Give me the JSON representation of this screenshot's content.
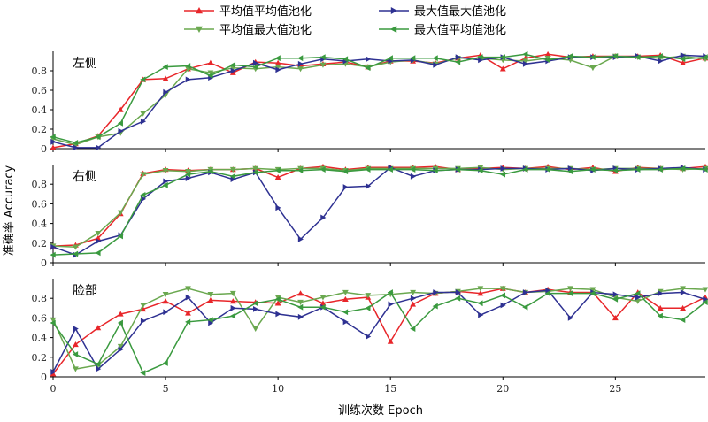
{
  "chart_data": [
    {
      "type": "line",
      "panel_label": "左侧",
      "x": [
        0,
        1,
        2,
        3,
        4,
        5,
        6,
        7,
        8,
        9,
        10,
        11,
        12,
        13,
        14,
        15,
        16,
        17,
        18,
        19,
        20,
        21,
        22,
        23,
        24,
        25,
        26,
        27,
        28,
        29
      ],
      "ylim": [
        0,
        1.0
      ],
      "yticks": [
        0,
        0.2,
        0.4,
        0.6,
        0.8
      ],
      "series": [
        {
          "name": "平均值平均值池化",
          "color": "#e8262a",
          "marker": "triangle-up",
          "values": [
            0.01,
            0.05,
            0.13,
            0.4,
            0.71,
            0.72,
            0.82,
            0.88,
            0.78,
            0.89,
            0.88,
            0.85,
            0.87,
            0.89,
            0.84,
            0.9,
            0.9,
            0.88,
            0.93,
            0.96,
            0.82,
            0.93,
            0.97,
            0.94,
            0.95,
            0.95,
            0.95,
            0.96,
            0.88,
            0.93
          ]
        },
        {
          "name": "平均值最大值池化",
          "color": "#6aa84f",
          "marker": "triangle-down",
          "values": [
            0.1,
            0.04,
            0.12,
            0.16,
            0.36,
            0.55,
            0.82,
            0.78,
            0.83,
            0.82,
            0.84,
            0.82,
            0.86,
            0.87,
            0.84,
            0.89,
            0.91,
            0.87,
            0.93,
            0.93,
            0.91,
            0.9,
            0.93,
            0.91,
            0.83,
            0.95,
            0.94,
            0.93,
            0.95,
            0.92
          ]
        },
        {
          "name": "最大值最大值池化",
          "color": "#2e3192",
          "marker": "triangle-right",
          "values": [
            0.07,
            0.01,
            0.01,
            0.18,
            0.28,
            0.58,
            0.71,
            0.73,
            0.8,
            0.88,
            0.81,
            0.87,
            0.92,
            0.9,
            0.92,
            0.9,
            0.91,
            0.86,
            0.94,
            0.91,
            0.94,
            0.87,
            0.9,
            0.94,
            0.94,
            0.94,
            0.95,
            0.9,
            0.96,
            0.95
          ]
        },
        {
          "name": "最大值平均值池化",
          "color": "#3a9a3f",
          "marker": "triangle-left",
          "values": [
            0.12,
            0.06,
            0.12,
            0.26,
            0.71,
            0.84,
            0.85,
            0.75,
            0.86,
            0.84,
            0.93,
            0.93,
            0.94,
            0.92,
            0.83,
            0.93,
            0.93,
            0.93,
            0.89,
            0.94,
            0.94,
            0.97,
            0.91,
            0.95,
            0.94,
            0.95,
            0.94,
            0.95,
            0.92,
            0.94
          ]
        }
      ]
    },
    {
      "type": "line",
      "panel_label": "右侧",
      "x": [
        0,
        1,
        2,
        3,
        4,
        5,
        6,
        7,
        8,
        9,
        10,
        11,
        12,
        13,
        14,
        15,
        16,
        17,
        18,
        19,
        20,
        21,
        22,
        23,
        24,
        25,
        26,
        27,
        28,
        29
      ],
      "ylim": [
        0,
        1.0
      ],
      "yticks": [
        0,
        0.2,
        0.4,
        0.6,
        0.8
      ],
      "series": [
        {
          "name": "平均值平均值池化",
          "color": "#e8262a",
          "marker": "triangle-up",
          "values": [
            0.17,
            0.18,
            0.25,
            0.5,
            0.91,
            0.95,
            0.94,
            0.95,
            0.95,
            0.96,
            0.87,
            0.96,
            0.98,
            0.95,
            0.97,
            0.97,
            0.97,
            0.98,
            0.95,
            0.96,
            0.97,
            0.96,
            0.98,
            0.95,
            0.97,
            0.93,
            0.97,
            0.96,
            0.96,
            0.98
          ]
        },
        {
          "name": "平均值最大值池化",
          "color": "#6aa84f",
          "marker": "triangle-down",
          "values": [
            0.17,
            0.16,
            0.3,
            0.51,
            0.9,
            0.94,
            0.93,
            0.95,
            0.95,
            0.96,
            0.95,
            0.96,
            0.96,
            0.94,
            0.96,
            0.96,
            0.96,
            0.96,
            0.96,
            0.97,
            0.95,
            0.96,
            0.96,
            0.96,
            0.95,
            0.96,
            0.96,
            0.96,
            0.95,
            0.96
          ]
        },
        {
          "name": "最大值最大值池化",
          "color": "#2e3192",
          "marker": "triangle-right",
          "values": [
            0.16,
            0.08,
            0.22,
            0.28,
            0.65,
            0.83,
            0.86,
            0.92,
            0.85,
            0.92,
            0.56,
            0.24,
            0.46,
            0.77,
            0.78,
            0.97,
            0.88,
            0.94,
            0.95,
            0.95,
            0.96,
            0.96,
            0.95,
            0.96,
            0.94,
            0.96,
            0.95,
            0.96,
            0.97,
            0.95
          ]
        },
        {
          "name": "最大值平均值池化",
          "color": "#3a9a3f",
          "marker": "triangle-left",
          "values": [
            0.08,
            0.09,
            0.1,
            0.27,
            0.69,
            0.79,
            0.9,
            0.93,
            0.88,
            0.92,
            0.94,
            0.94,
            0.95,
            0.93,
            0.95,
            0.95,
            0.95,
            0.94,
            0.95,
            0.94,
            0.9,
            0.95,
            0.95,
            0.93,
            0.95,
            0.94,
            0.95,
            0.95,
            0.96,
            0.95
          ]
        }
      ]
    },
    {
      "type": "line",
      "panel_label": "脸部",
      "x": [
        0,
        1,
        2,
        3,
        4,
        5,
        6,
        7,
        8,
        9,
        10,
        11,
        12,
        13,
        14,
        15,
        16,
        17,
        18,
        19,
        20,
        21,
        22,
        23,
        24,
        25,
        26,
        27,
        28,
        29
      ],
      "ylim": [
        0,
        1.0
      ],
      "yticks": [
        0,
        0.2,
        0.4,
        0.6,
        0.8
      ],
      "series": [
        {
          "name": "平均值平均值池化",
          "color": "#e8262a",
          "marker": "triangle-up",
          "values": [
            0.03,
            0.33,
            0.5,
            0.64,
            0.69,
            0.77,
            0.65,
            0.78,
            0.77,
            0.76,
            0.75,
            0.85,
            0.75,
            0.79,
            0.81,
            0.36,
            0.74,
            0.85,
            0.87,
            0.85,
            0.9,
            0.86,
            0.89,
            0.86,
            0.86,
            0.6,
            0.86,
            0.7,
            0.7,
            0.81
          ]
        },
        {
          "name": "平均值最大值池化",
          "color": "#6aa84f",
          "marker": "triangle-down",
          "values": [
            0.58,
            0.08,
            0.12,
            0.31,
            0.73,
            0.84,
            0.9,
            0.84,
            0.85,
            0.49,
            0.81,
            0.76,
            0.81,
            0.86,
            0.83,
            0.84,
            0.86,
            0.85,
            0.87,
            0.9,
            0.9,
            0.86,
            0.87,
            0.9,
            0.89,
            0.81,
            0.77,
            0.87,
            0.9,
            0.89
          ]
        },
        {
          "name": "最大值最大值池化",
          "color": "#2e3192",
          "marker": "triangle-right",
          "values": [
            0.05,
            0.49,
            0.08,
            0.28,
            0.57,
            0.66,
            0.81,
            0.55,
            0.7,
            0.69,
            0.64,
            0.61,
            0.71,
            0.56,
            0.41,
            0.74,
            0.8,
            0.86,
            0.86,
            0.63,
            0.73,
            0.86,
            0.88,
            0.6,
            0.86,
            0.84,
            0.81,
            0.85,
            0.86,
            0.79
          ]
        },
        {
          "name": "最大值平均值池化",
          "color": "#3a9a3f",
          "marker": "triangle-left",
          "values": [
            0.55,
            0.23,
            0.13,
            0.55,
            0.04,
            0.14,
            0.56,
            0.58,
            0.62,
            0.75,
            0.79,
            0.71,
            0.71,
            0.66,
            0.7,
            0.86,
            0.49,
            0.72,
            0.8,
            0.75,
            0.83,
            0.71,
            0.85,
            0.85,
            0.85,
            0.79,
            0.85,
            0.62,
            0.58,
            0.76
          ]
        }
      ]
    }
  ],
  "shared": {
    "xlabel": "训练次数 Epoch",
    "ylabel": "准确率 Accuracy",
    "xticks": [
      0,
      5,
      10,
      15,
      20,
      25
    ],
    "xlim": [
      0,
      29
    ],
    "legend": {
      "placement": "top",
      "entries": [
        "平均值平均值池化",
        "最大值最大值池化",
        "平均值最大值池化",
        "最大值平均值池化"
      ]
    }
  }
}
